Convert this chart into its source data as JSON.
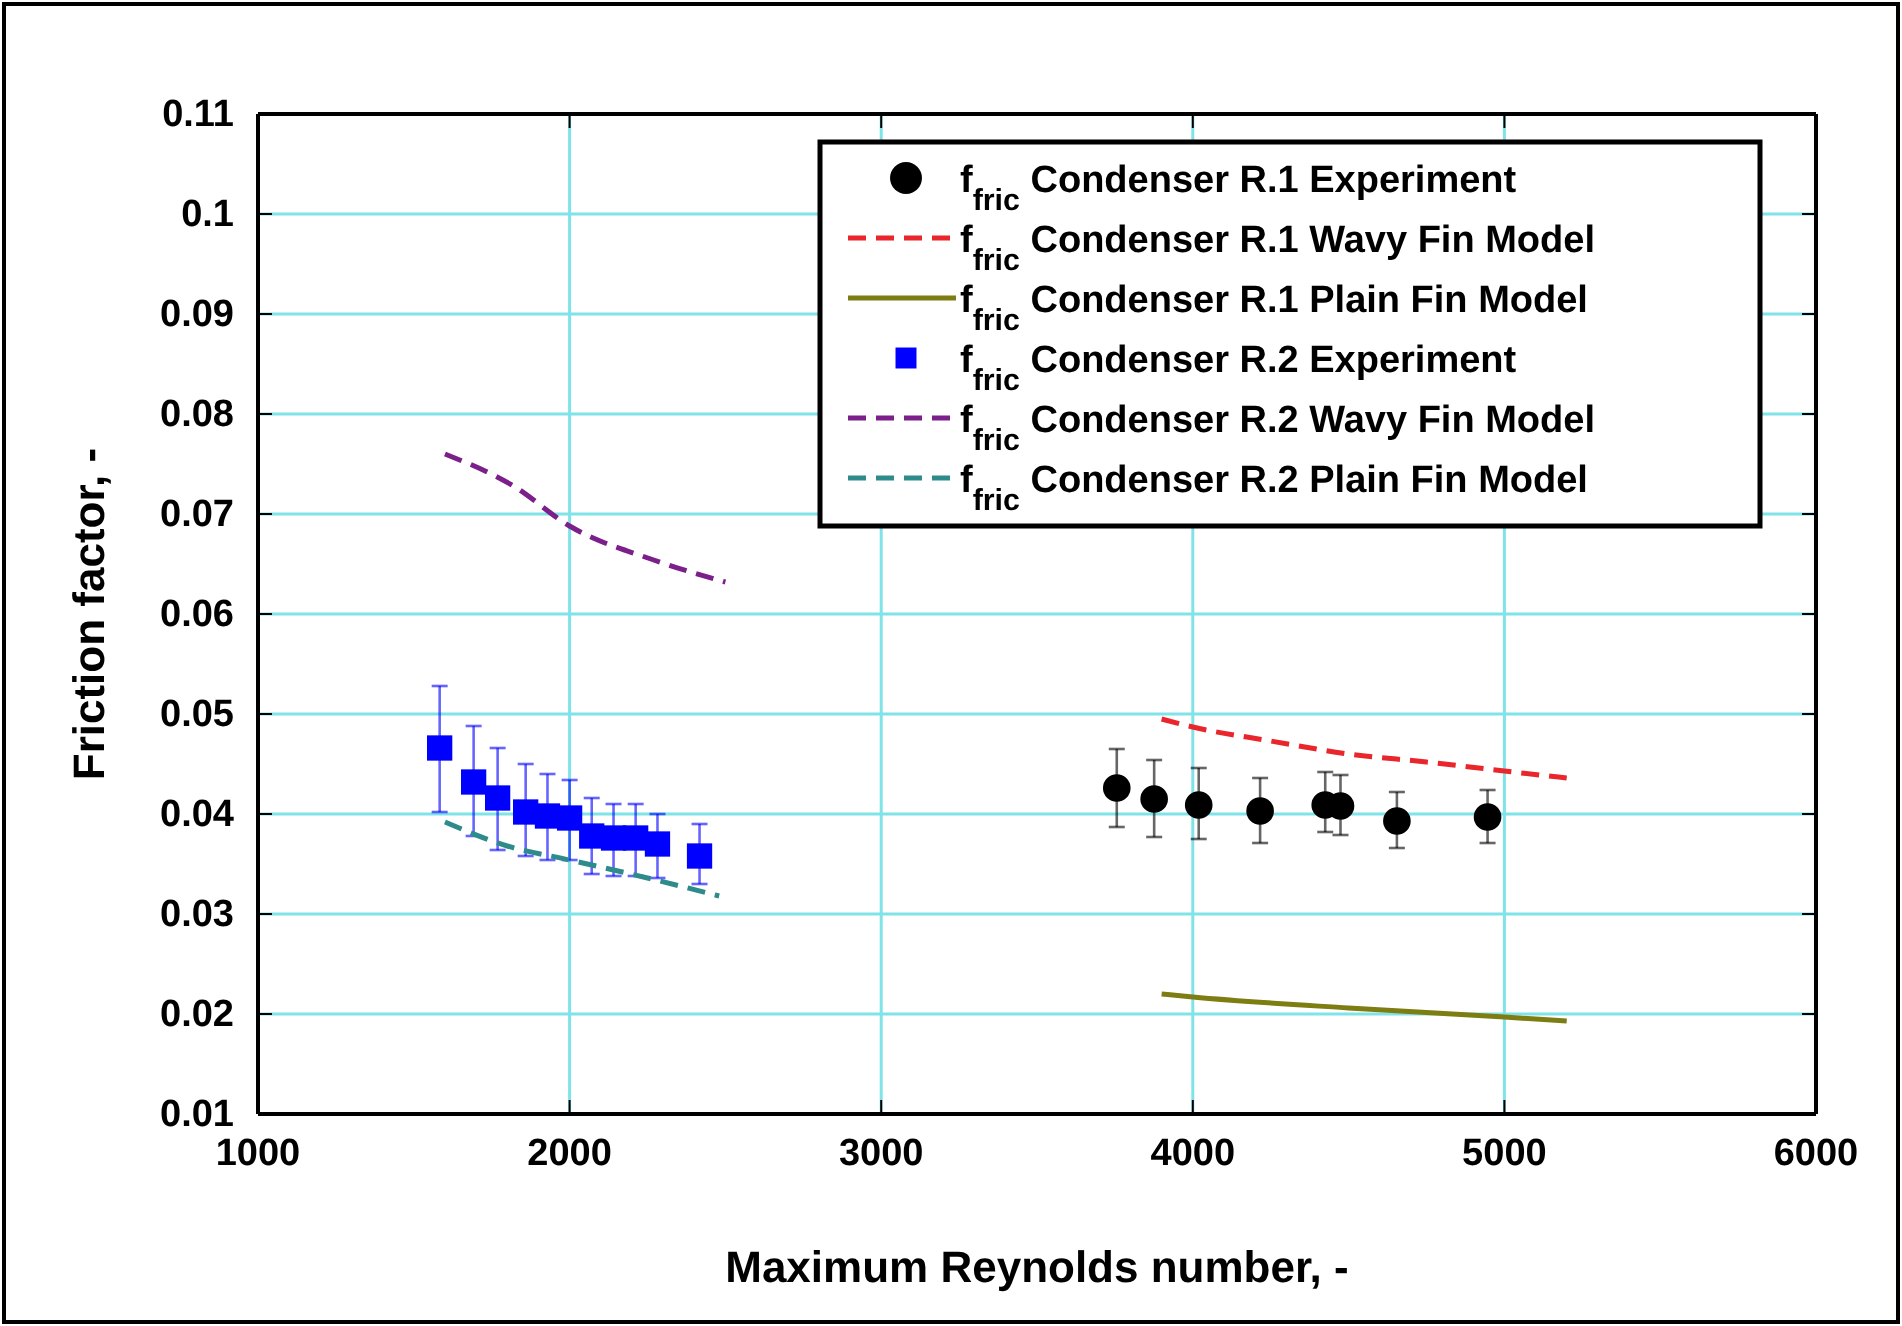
{
  "chart_data": {
    "type": "scatter",
    "xlabel": "Maximum Reynolds number, -",
    "ylabel": "Friction factor, -",
    "xlim": [
      1000,
      6000
    ],
    "xticks": [
      1000,
      2000,
      3000,
      4000,
      5000,
      6000
    ],
    "ylim": [
      0.01,
      0.11
    ],
    "yticks": [
      0.01,
      0.02,
      0.03,
      0.04,
      0.05,
      0.06,
      0.07,
      0.08,
      0.09,
      0.1,
      0.11
    ],
    "grid": true,
    "legend": "top right",
    "series": [
      {
        "name": "f$_{fric}$ Condenser R.1 Experiment",
        "marker": "circle",
        "color": "#000000",
        "x": [
          3756,
          3876,
          4019,
          4216,
          4425,
          4474,
          4655,
          4946
        ],
        "values": [
          0.0426,
          0.0415,
          0.0409,
          0.0403,
          0.0409,
          0.0408,
          0.0393,
          0.0397
        ],
        "errors": [
          [
            0.0387,
            0.0465
          ],
          [
            0.0377,
            0.0454
          ],
          [
            0.0375,
            0.0446
          ],
          [
            0.0371,
            0.0436
          ],
          [
            0.0382,
            0.0442
          ],
          [
            0.0379,
            0.0439
          ],
          [
            0.0366,
            0.0422
          ],
          [
            0.0371,
            0.0424
          ]
        ]
      },
      {
        "name": "f$_{fric}$ Condenser R.1 Wavy Fin Model",
        "type": "line",
        "line_style": "dashed",
        "color": "#e8262b",
        "x": [
          3900,
          4000,
          4250,
          4500,
          4750,
          5000,
          5200
        ],
        "values": [
          0.0495,
          0.0487,
          0.0473,
          0.046,
          0.0452,
          0.0443,
          0.0436
        ]
      },
      {
        "name": "f$_{fric}$ Condenser R.1 Plain Fin Model",
        "type": "line",
        "line_style": "solid",
        "color": "#7d7d12",
        "x": [
          3900,
          4000,
          4500,
          5000,
          5200
        ],
        "values": [
          0.022,
          0.0217,
          0.0206,
          0.0197,
          0.0193
        ]
      },
      {
        "name": "f$_{fric}$ Condenser R.2 Experiment",
        "marker": "square",
        "color": "#0000ff",
        "x": [
          1583,
          1692,
          1769,
          1859,
          1929,
          2000,
          2071,
          2141,
          2212,
          2282,
          2417
        ],
        "values": [
          0.0466,
          0.0432,
          0.0416,
          0.0402,
          0.0398,
          0.0396,
          0.0378,
          0.0376,
          0.0376,
          0.037,
          0.0358
        ],
        "errors": [
          [
            0.0402,
            0.0528
          ],
          [
            0.0378,
            0.0488
          ],
          [
            0.0364,
            0.0466
          ],
          [
            0.0358,
            0.045
          ],
          [
            0.0354,
            0.044
          ],
          [
            0.0354,
            0.0434
          ],
          [
            0.034,
            0.0416
          ],
          [
            0.0338,
            0.041
          ],
          [
            0.0338,
            0.041
          ],
          [
            0.0336,
            0.04
          ],
          [
            0.033,
            0.039
          ]
        ]
      },
      {
        "name": "f$_{fric}$ Condenser R.2 Wavy Fin Model",
        "type": "line",
        "line_style": "dashed",
        "color": "#7b1f8a",
        "x": [
          1600,
          1820,
          2000,
          2270,
          2500
        ],
        "values": [
          0.076,
          0.0728,
          0.0688,
          0.0654,
          0.0632
        ]
      },
      {
        "name": "f$_{fric}$ Condenser R.2 Plain Fin Model",
        "type": "line",
        "line_style": "dashed",
        "color": "#2e8b8b",
        "x": [
          1600,
          1800,
          2000,
          2250,
          2480
        ],
        "values": [
          0.0392,
          0.0368,
          0.0354,
          0.0336,
          0.0318
        ]
      }
    ]
  }
}
